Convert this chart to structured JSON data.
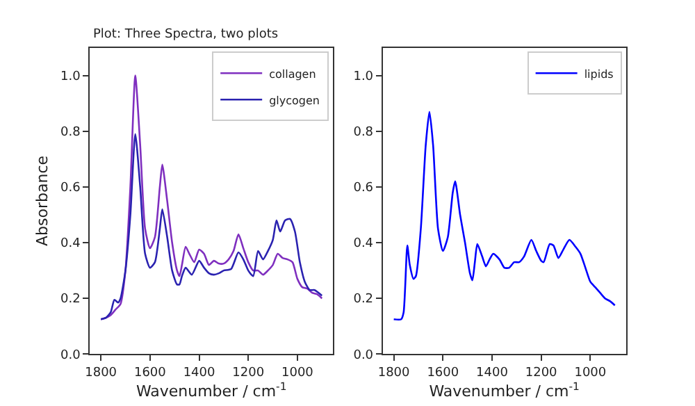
{
  "chart_data": [
    {
      "type": "line",
      "title": "Plot: Three Spectra, two plots",
      "xlabel": "Wavenumber / cm$^{-1}$",
      "ylabel": "Absorbance",
      "xlim": [
        1845,
        855
      ],
      "ylim": [
        0,
        1.1
      ],
      "xticks": [
        1800,
        1600,
        1400,
        1200,
        1000
      ],
      "yticks": [
        {
          "value": 0,
          "label": "0.0"
        },
        {
          "value": 0.2,
          "label": "0.2"
        },
        {
          "value": 0.4,
          "label": "0.4"
        },
        {
          "value": 0.6,
          "label": "0.6"
        },
        {
          "value": 0.8,
          "label": "0.8"
        },
        {
          "value": 1.0,
          "label": "1.0"
        }
      ],
      "legend": "top right",
      "series": [
        {
          "name": "collagen",
          "color": "#7f2fbf",
          "x": [
            1800,
            1780,
            1760,
            1740,
            1720,
            1700,
            1680,
            1660,
            1640,
            1620,
            1600,
            1580,
            1560,
            1550,
            1530,
            1510,
            1490,
            1480,
            1470,
            1455,
            1440,
            1420,
            1400,
            1380,
            1360,
            1340,
            1320,
            1300,
            1280,
            1260,
            1240,
            1220,
            1200,
            1180,
            1160,
            1140,
            1120,
            1100,
            1080,
            1060,
            1040,
            1020,
            1000,
            980,
            960,
            940,
            920,
            900
          ],
          "values": [
            0.125,
            0.13,
            0.14,
            0.16,
            0.18,
            0.3,
            0.6,
            1.0,
            0.75,
            0.45,
            0.38,
            0.42,
            0.6,
            0.68,
            0.55,
            0.4,
            0.3,
            0.28,
            0.32,
            0.385,
            0.36,
            0.33,
            0.375,
            0.36,
            0.32,
            0.335,
            0.325,
            0.325,
            0.34,
            0.37,
            0.43,
            0.38,
            0.33,
            0.3,
            0.3,
            0.285,
            0.3,
            0.32,
            0.36,
            0.345,
            0.34,
            0.33,
            0.27,
            0.24,
            0.235,
            0.22,
            0.215,
            0.2
          ]
        },
        {
          "name": "glycogen",
          "color": "#2a22b0",
          "x": [
            1800,
            1780,
            1760,
            1745,
            1730,
            1720,
            1700,
            1680,
            1660,
            1640,
            1620,
            1600,
            1580,
            1560,
            1550,
            1530,
            1510,
            1490,
            1480,
            1470,
            1455,
            1430,
            1400,
            1380,
            1360,
            1340,
            1320,
            1300,
            1270,
            1240,
            1220,
            1200,
            1180,
            1160,
            1140,
            1120,
            1100,
            1085,
            1070,
            1050,
            1030,
            1010,
            990,
            970,
            950,
            930,
            900
          ],
          "values": [
            0.125,
            0.13,
            0.15,
            0.195,
            0.185,
            0.2,
            0.3,
            0.5,
            0.79,
            0.6,
            0.36,
            0.31,
            0.33,
            0.45,
            0.52,
            0.42,
            0.3,
            0.25,
            0.25,
            0.28,
            0.31,
            0.285,
            0.335,
            0.31,
            0.29,
            0.285,
            0.29,
            0.3,
            0.305,
            0.365,
            0.34,
            0.3,
            0.28,
            0.37,
            0.34,
            0.37,
            0.41,
            0.48,
            0.44,
            0.48,
            0.485,
            0.44,
            0.33,
            0.26,
            0.23,
            0.23,
            0.21
          ]
        }
      ]
    },
    {
      "type": "line",
      "xlabel": "Wavenumber / cm$^{-1}$",
      "xlim": [
        1845,
        855
      ],
      "ylim": [
        0,
        1.1
      ],
      "xticks": [
        1800,
        1600,
        1400,
        1200,
        1000
      ],
      "yticks": [
        {
          "value": 0,
          "label": "0.0"
        },
        {
          "value": 0.2,
          "label": "0.2"
        },
        {
          "value": 0.4,
          "label": "0.4"
        },
        {
          "value": 0.6,
          "label": "0.6"
        },
        {
          "value": 0.8,
          "label": "0.8"
        },
        {
          "value": 1.0,
          "label": "1.0"
        }
      ],
      "legend": "top right",
      "series": [
        {
          "name": "lipids",
          "color": "#0000ff",
          "x": [
            1800,
            1770,
            1760,
            1745,
            1735,
            1720,
            1710,
            1690,
            1670,
            1655,
            1640,
            1620,
            1600,
            1580,
            1560,
            1550,
            1530,
            1510,
            1490,
            1480,
            1470,
            1460,
            1440,
            1425,
            1410,
            1395,
            1370,
            1350,
            1330,
            1310,
            1290,
            1270,
            1240,
            1220,
            1200,
            1190,
            1165,
            1150,
            1130,
            1110,
            1085,
            1060,
            1040,
            1020,
            1000,
            980,
            960,
            940,
            920,
            900
          ],
          "values": [
            0.125,
            0.125,
            0.15,
            0.39,
            0.32,
            0.27,
            0.28,
            0.45,
            0.75,
            0.87,
            0.75,
            0.45,
            0.37,
            0.42,
            0.58,
            0.62,
            0.5,
            0.4,
            0.29,
            0.265,
            0.33,
            0.395,
            0.35,
            0.315,
            0.34,
            0.36,
            0.34,
            0.31,
            0.31,
            0.33,
            0.33,
            0.35,
            0.41,
            0.37,
            0.335,
            0.33,
            0.395,
            0.39,
            0.345,
            0.375,
            0.41,
            0.385,
            0.36,
            0.31,
            0.26,
            0.24,
            0.22,
            0.2,
            0.19,
            0.175
          ]
        }
      ]
    }
  ]
}
